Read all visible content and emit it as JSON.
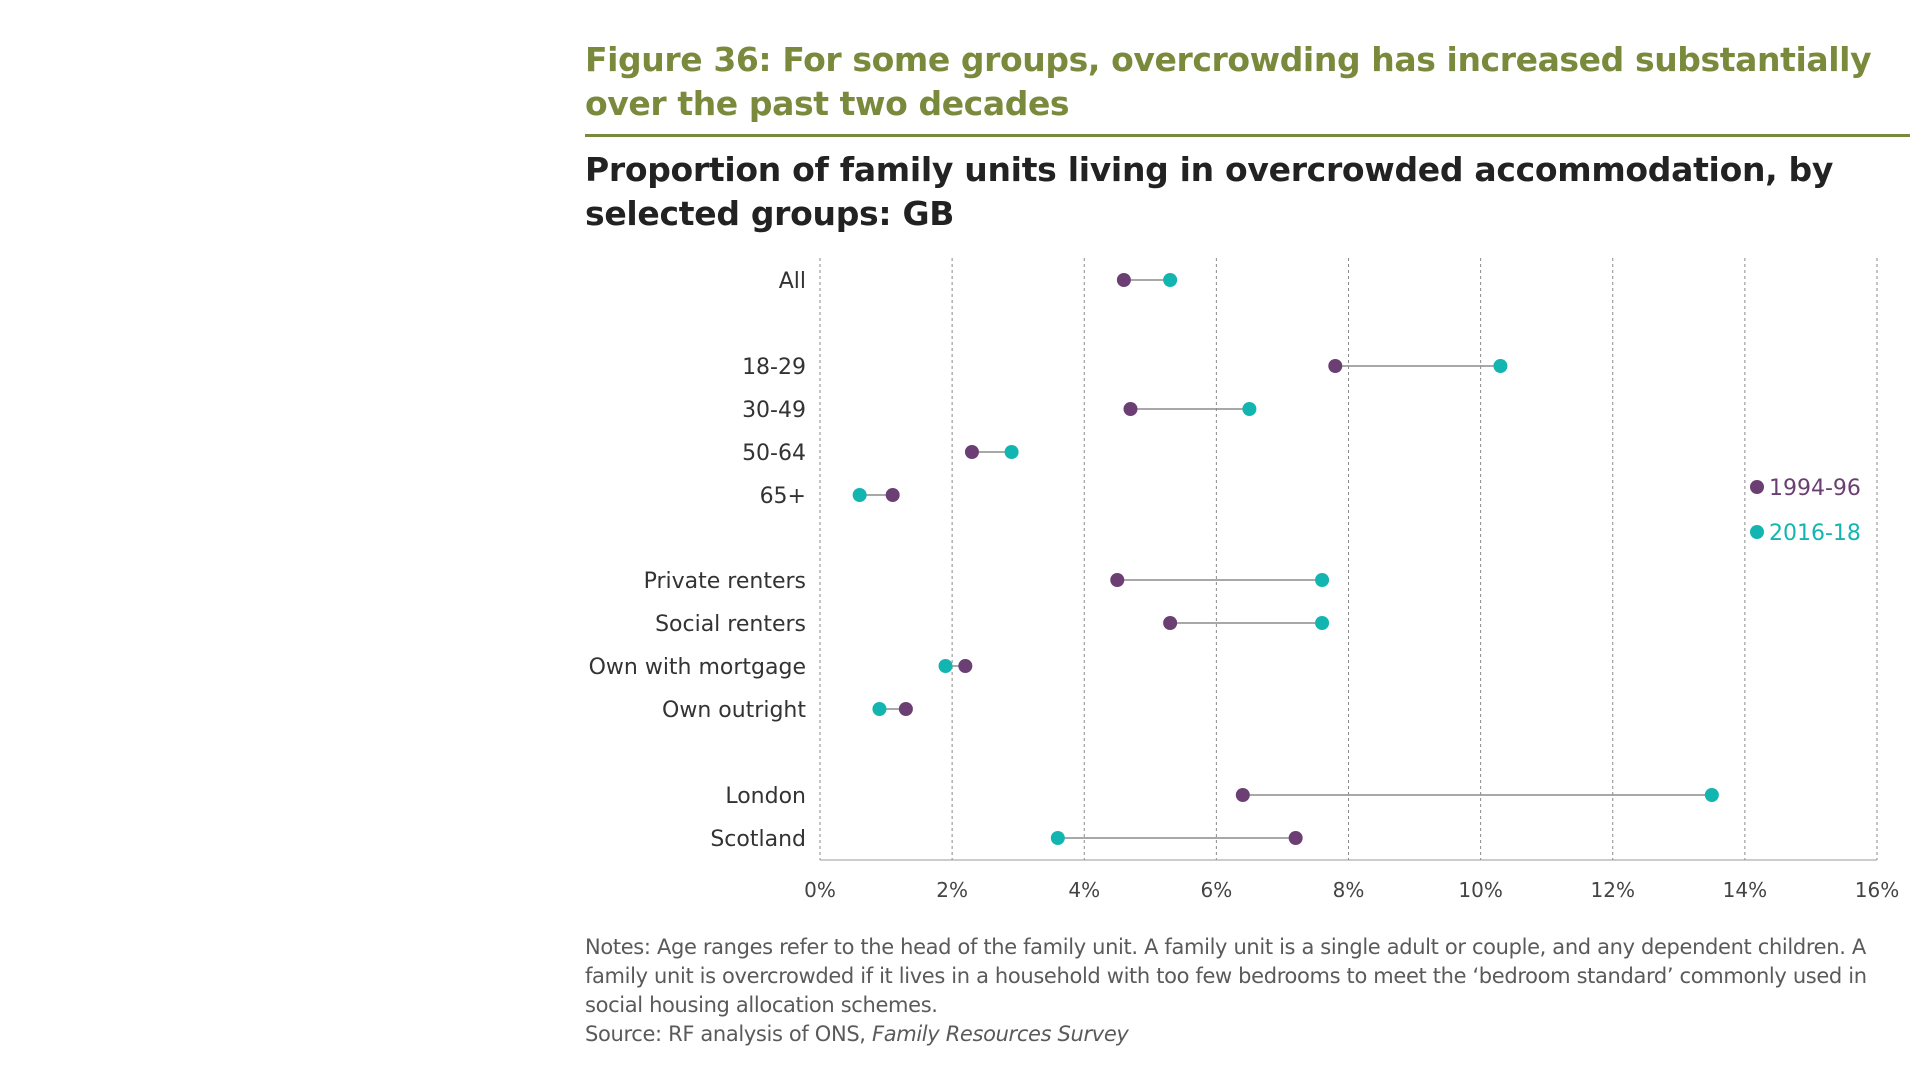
{
  "figure": {
    "title": "Figure 36: For some groups, overcrowding has increased substantially over the past two decades",
    "subtitle": "Proportion of family units living in overcrowded accommodation, by selected groups: GB",
    "notes": "Notes: Age ranges refer to the head of the family unit. A family unit is a single adult or couple, and any dependent children. A family unit is overcrowded if it lives in a household with too few bedrooms to meet the ‘bedroom standard’ commonly used in social housing allocation schemes.",
    "source_prefix": "Source: RF analysis of ONS, ",
    "source_italic": "Family Resources Survey"
  },
  "chart_data": {
    "type": "scatter",
    "style": "dumbbell",
    "orientation": "horizontal",
    "xlim": [
      0,
      16
    ],
    "x_ticks": [
      0,
      2,
      4,
      6,
      8,
      10,
      12,
      14,
      16
    ],
    "x_tick_suffix": "%",
    "grid": "vertical dashed",
    "legend_position": "right",
    "colors": {
      "1994-96": "#6b3f73",
      "2016-18": "#13b5b1"
    },
    "series": [
      {
        "name": "1994-96",
        "color": "#6b3f73"
      },
      {
        "name": "2016-18",
        "color": "#13b5b1"
      }
    ],
    "categories": [
      {
        "label": "All",
        "v1994": 4.6,
        "v2016": 5.3
      },
      {
        "label": "18-29",
        "v1994": 7.8,
        "v2016": 10.3
      },
      {
        "label": "30-49",
        "v1994": 4.7,
        "v2016": 6.5
      },
      {
        "label": "50-64",
        "v1994": 2.3,
        "v2016": 2.9
      },
      {
        "label": "65+",
        "v1994": 1.1,
        "v2016": 0.6
      },
      {
        "label": "Private renters",
        "v1994": 4.5,
        "v2016": 7.6
      },
      {
        "label": "Social renters",
        "v1994": 5.3,
        "v2016": 7.6
      },
      {
        "label": "Own with mortgage",
        "v1994": 2.2,
        "v2016": 1.9
      },
      {
        "label": "Own outright",
        "v1994": 1.3,
        "v2016": 0.9
      },
      {
        "label": "London",
        "v1994": 6.4,
        "v2016": 13.5
      },
      {
        "label": "Scotland",
        "v1994": 7.2,
        "v2016": 3.6
      }
    ]
  }
}
